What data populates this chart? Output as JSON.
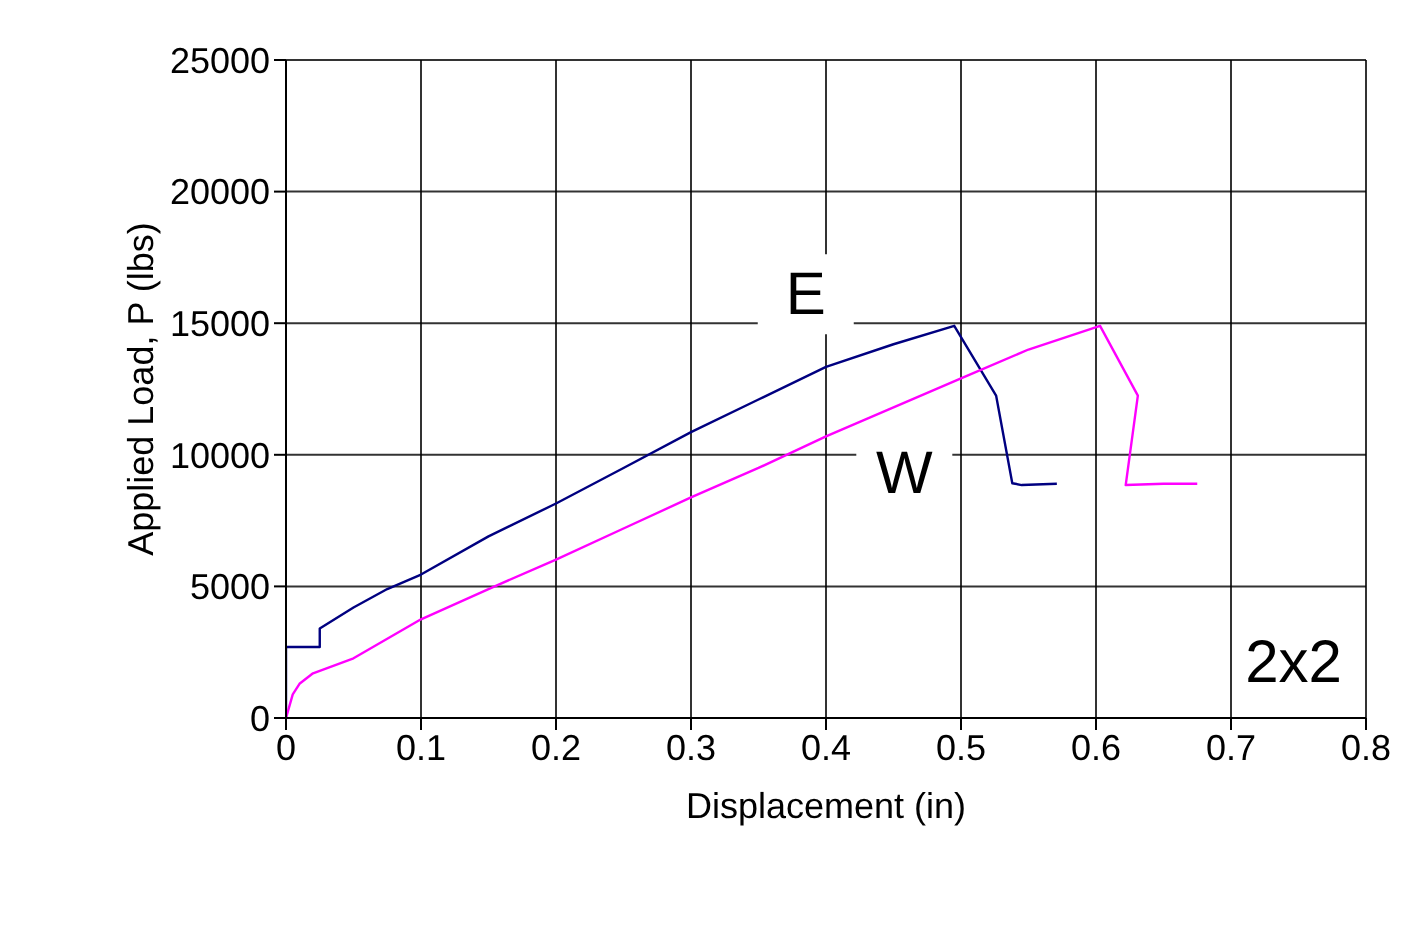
{
  "chart_data": {
    "type": "line",
    "xlabel": "Displacement (in)",
    "ylabel": "Applied Load, P (lbs)",
    "xlim": [
      0,
      0.8
    ],
    "xticks": [
      0,
      0.1,
      0.2,
      0.3,
      0.4,
      0.5,
      0.6,
      0.7,
      0.8
    ],
    "ylim": [
      0,
      25000
    ],
    "yticks": [
      0,
      5000,
      10000,
      15000,
      20000,
      25000
    ],
    "grid": true,
    "marker": "none",
    "line_style": "solid",
    "annotations": [
      "2x2"
    ],
    "series": [
      {
        "name": "E",
        "color": "#000080",
        "x": [
          0,
          0,
          0.025,
          0.025,
          0.05,
          0.075,
          0.1,
          0.15,
          0.2,
          0.25,
          0.3,
          0.35,
          0.4,
          0.45,
          0.495,
          0.526,
          0.538,
          0.545,
          0.571
        ],
        "values": [
          0,
          2700,
          2700,
          3400,
          4200,
          4900,
          5450,
          6900,
          8150,
          9500,
          10860,
          12100,
          13340,
          14200,
          14900,
          12250,
          8920,
          8850,
          8900
        ]
      },
      {
        "name": "W",
        "color": "#ff00ff",
        "x": [
          0,
          0.005,
          0.01,
          0.02,
          0.05,
          0.1,
          0.15,
          0.2,
          0.25,
          0.3,
          0.35,
          0.4,
          0.45,
          0.5,
          0.55,
          0.603,
          0.631,
          0.622,
          0.65,
          0.675
        ],
        "values": [
          0,
          900,
          1300,
          1700,
          2270,
          3750,
          4900,
          6020,
          7200,
          8380,
          9500,
          10700,
          11800,
          12900,
          14000,
          14900,
          12250,
          8850,
          8900,
          8900
        ]
      }
    ]
  }
}
